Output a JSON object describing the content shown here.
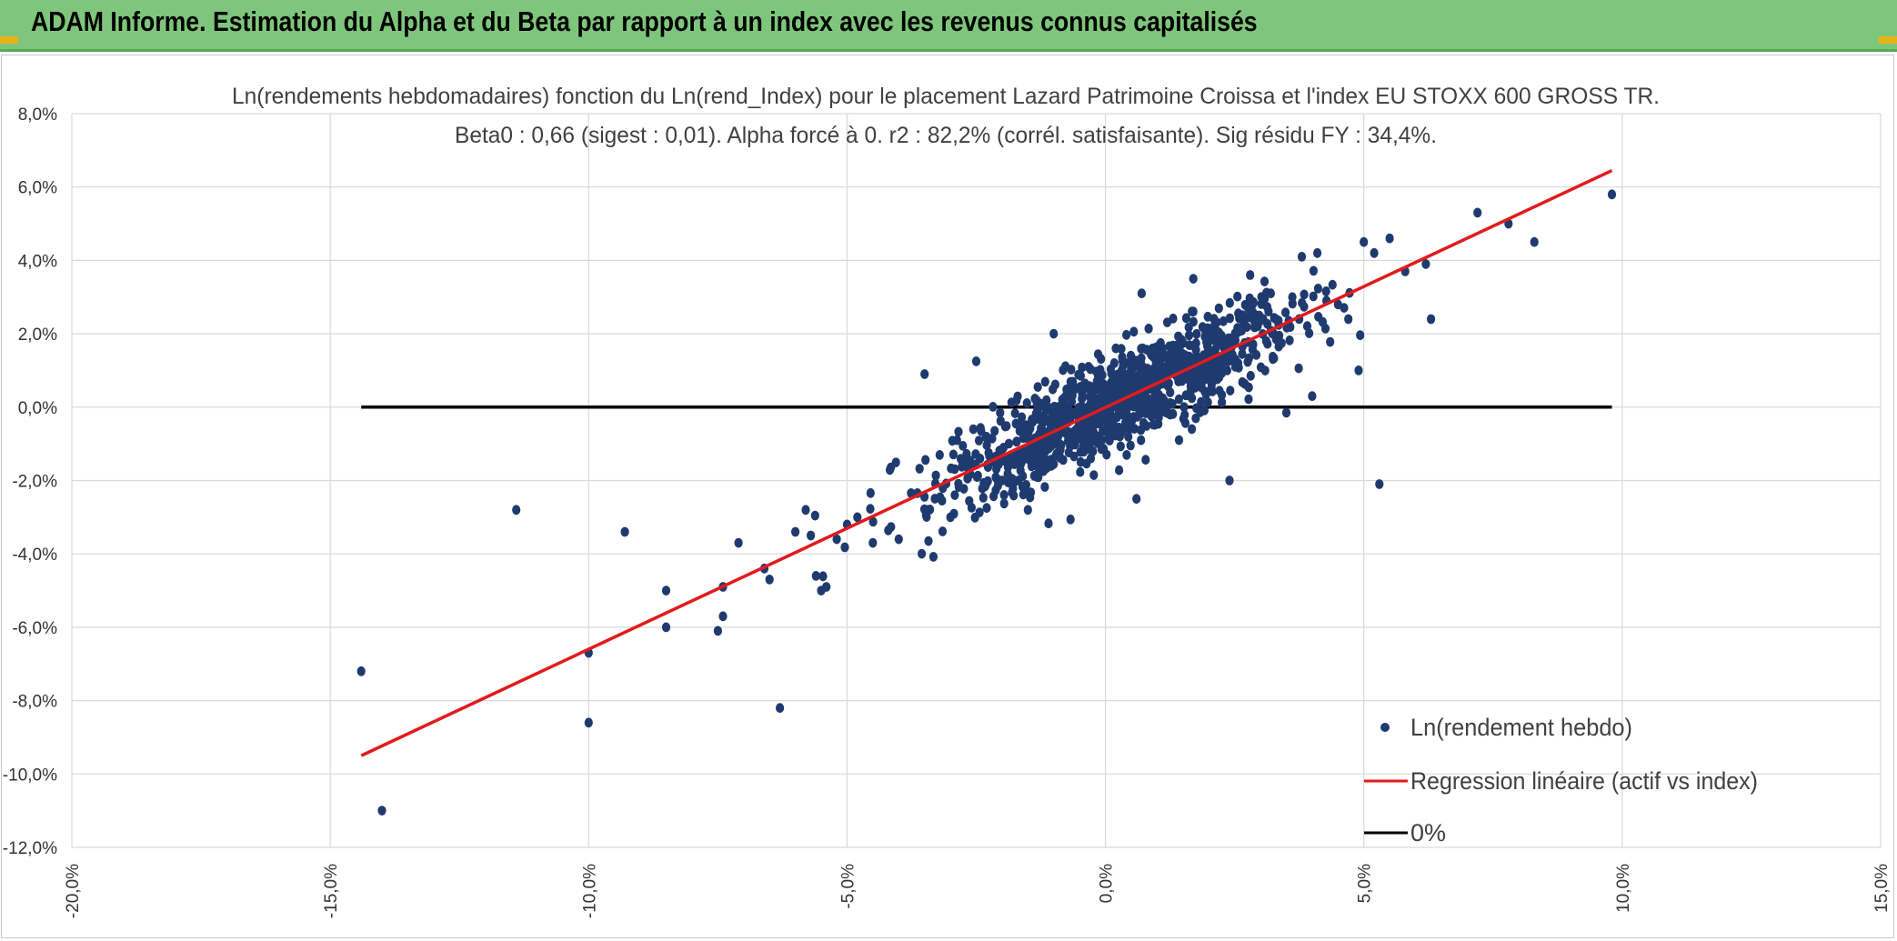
{
  "header": {
    "title": "ADAM Informe. Estimation du Alpha et du Beta par rapport à un index avec les revenus connus capitalisés"
  },
  "colors": {
    "header_bg": "#7ec67b",
    "points": "#1f3a6e",
    "regression": "#e31a1c",
    "zero_line": "#000000",
    "grid": "#d9d9d9"
  },
  "chart_data": {
    "type": "scatter",
    "title": "Ln(rendements hebdomadaires) fonction du Ln(rend_Index) pour le placement Lazard Patrimoine Croissa et l'index EU STOXX 600 GROSS TR.",
    "subtitle": "Beta0 : 0,66 (sigest : 0,01). Alpha forcé à 0. r2 : 82,2% (corrél. satisfaisante). Sig résidu FY : 34,4%.",
    "xlim": [
      -0.2,
      0.15
    ],
    "ylim": [
      -0.12,
      0.08
    ],
    "x_ticks": [
      "-20,0%",
      "-15,0%",
      "-10,0%",
      "-5,0%",
      "0,0%",
      "5,0%",
      "10,0%",
      "15,0%"
    ],
    "y_ticks": [
      "8,0%",
      "6,0%",
      "4,0%",
      "2,0%",
      "0,0%",
      "-2,0%",
      "-4,0%",
      "-6,0%",
      "-8,0%",
      "-10,0%",
      "-12,0%"
    ],
    "grid": true,
    "legend_position": "bottom-right",
    "beta": 0.66,
    "series": [
      {
        "name": "Ln(rendement hebdo)",
        "kind": "scatter",
        "points_outliers": [
          [
            -0.144,
            -0.072
          ],
          [
            -0.14,
            -0.11
          ],
          [
            -0.114,
            -0.028
          ],
          [
            -0.093,
            -0.034
          ],
          [
            -0.1,
            -0.067
          ],
          [
            -0.1,
            -0.086
          ],
          [
            -0.085,
            -0.05
          ],
          [
            -0.085,
            -0.06
          ],
          [
            -0.075,
            -0.061
          ],
          [
            -0.074,
            -0.057
          ],
          [
            -0.074,
            -0.049
          ],
          [
            -0.071,
            -0.037
          ],
          [
            -0.066,
            -0.044
          ],
          [
            -0.065,
            -0.047
          ],
          [
            -0.063,
            -0.082
          ],
          [
            -0.06,
            -0.034
          ],
          [
            -0.058,
            -0.028
          ],
          [
            -0.057,
            -0.035
          ],
          [
            -0.056,
            -0.046
          ],
          [
            -0.055,
            -0.05
          ],
          [
            -0.054,
            -0.049
          ],
          [
            -0.052,
            -0.036
          ],
          [
            -0.05,
            -0.032
          ],
          [
            -0.048,
            -0.03
          ],
          [
            -0.035,
            0.009
          ],
          [
            -0.025,
            0.0125
          ],
          [
            -0.01,
            0.02
          ],
          [
            0.006,
            -0.025
          ],
          [
            0.024,
            -0.02
          ],
          [
            0.035,
            -0.0015
          ],
          [
            0.05,
            0.045
          ],
          [
            0.052,
            0.042
          ],
          [
            0.053,
            -0.021
          ],
          [
            0.055,
            0.046
          ],
          [
            0.058,
            0.037
          ],
          [
            0.062,
            0.039
          ],
          [
            0.063,
            0.024
          ],
          [
            0.072,
            0.053
          ],
          [
            0.078,
            0.05
          ],
          [
            0.083,
            0.045
          ],
          [
            0.098,
            0.058
          ],
          [
            0.041,
            0.042
          ],
          [
            0.038,
            0.041
          ],
          [
            0.045,
            0.028
          ],
          [
            0.047,
            0.024
          ],
          [
            0.049,
            0.01
          ],
          [
            0.04,
            0.003
          ],
          [
            -0.02,
            -0.02
          ],
          [
            -0.04,
            -0.036
          ],
          [
            -0.045,
            -0.037
          ],
          [
            -0.03,
            -0.03
          ],
          [
            0.017,
            0.035
          ],
          [
            0.007,
            0.031
          ],
          [
            -0.015,
            -0.028
          ],
          [
            0.028,
            0.036
          ],
          [
            0.032,
            0.031
          ]
        ],
        "cloud": {
          "n": 1100,
          "x_mean": 0.003,
          "x_sd": 0.017,
          "noise_sd": 0.0065,
          "slope": 0.66
        }
      },
      {
        "name": "Regression linéaire (actif vs index)",
        "kind": "line",
        "x": [
          -0.144,
          0.098
        ],
        "y": [
          -0.095,
          0.0645
        ]
      },
      {
        "name": "0%",
        "kind": "line",
        "x": [
          -0.144,
          0.098
        ],
        "y": [
          0,
          0
        ]
      }
    ]
  }
}
